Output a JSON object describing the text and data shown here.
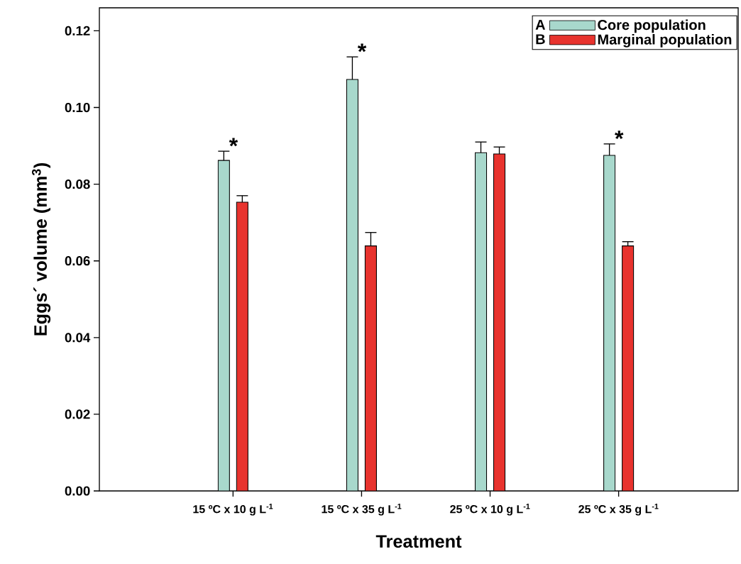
{
  "chart_data": {
    "type": "bar",
    "xlabel": "Treatment",
    "ylabel": "Eggs´ volume (mm$^{3}$)",
    "categories": [
      "15 ºC x 10 g L$^{-1}$",
      "15 ºC x 35 g L$^{-1}$",
      "25 ºC x 10 g L$^{-1}$",
      "25 ºC x 35 g L$^{-1}$"
    ],
    "series": [
      {
        "name": "Core population",
        "color": "#a8d8cc",
        "values": [
          0.0862,
          0.1073,
          0.0882,
          0.0875
        ],
        "errors": [
          0.0024,
          0.0059,
          0.0028,
          0.003
        ],
        "value_labels": [
          "*",
          "*",
          null,
          "*"
        ]
      },
      {
        "name": "Marginal population",
        "color": "#e8332e",
        "values": [
          0.0753,
          0.0639,
          0.0879,
          0.0639
        ],
        "errors": [
          0.0017,
          0.0035,
          0.0018,
          0.0011
        ]
      }
    ],
    "ylim": [
      0,
      0.126
    ],
    "yticks": [
      {
        "value": 0,
        "label": "0.00"
      },
      {
        "value": 0.02,
        "label": "0.02"
      },
      {
        "value": 0.04,
        "label": "0.04"
      },
      {
        "value": 0.06,
        "label": "0.06"
      },
      {
        "value": 0.08,
        "label": "0.08"
      },
      {
        "value": 0.1,
        "label": "0.10"
      },
      {
        "value": 0.12,
        "label": "0.12"
      }
    ],
    "grid": false,
    "legend": "top right",
    "annotations": [
      "A",
      "B"
    ]
  }
}
